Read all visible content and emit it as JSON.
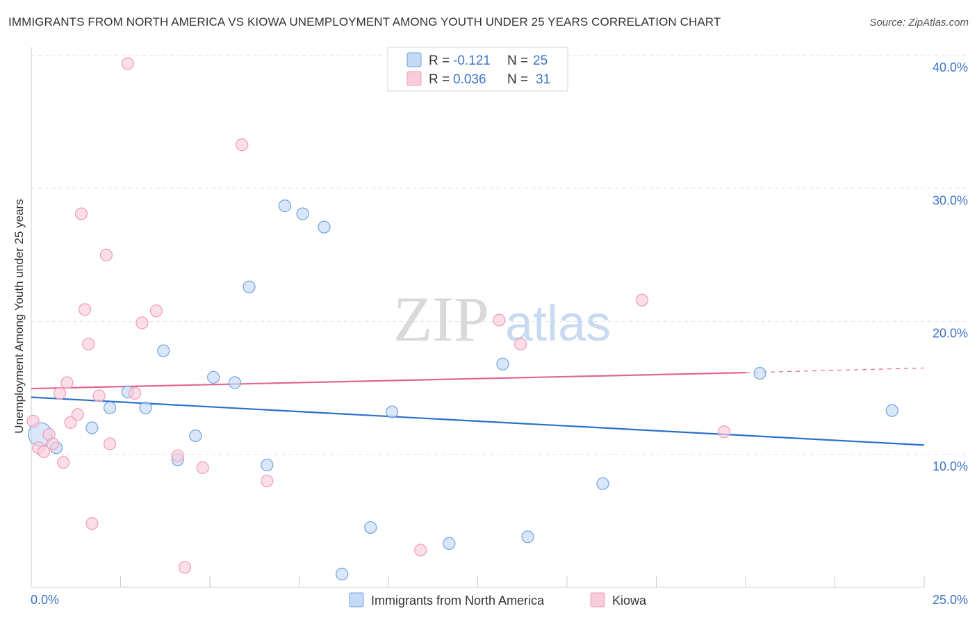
{
  "chart_data": {
    "type": "scatter",
    "title": "IMMIGRANTS FROM NORTH AMERICA VS KIOWA UNEMPLOYMENT AMONG YOUTH UNDER 25 YEARS CORRELATION CHART",
    "source": "Source: ZipAtlas.com",
    "xlabel": "",
    "ylabel": "Unemployment Among Youth under 25 years",
    "xlim": [
      0,
      25
    ],
    "ylim": [
      0,
      40
    ],
    "x_tick_labels": {
      "min": "0.0%",
      "max": "25.0%"
    },
    "y_ticks": [
      {
        "value": 10,
        "label": "10.0%"
      },
      {
        "value": 20,
        "label": "20.0%"
      },
      {
        "value": 30,
        "label": "30.0%"
      },
      {
        "value": 40,
        "label": "40.0%"
      }
    ],
    "grid": true,
    "watermark": "ZIPatlas",
    "legend": {
      "position": "top-center",
      "entries": [
        {
          "r_label": "R =",
          "r_value": "-0.121",
          "n_label": "N =",
          "n_value": "25"
        },
        {
          "r_label": "R =",
          "r_value": "0.036",
          "n_label": "N =",
          "n_value": "31"
        }
      ]
    },
    "series": [
      {
        "name": "Immigrants from North America",
        "color": "#6fa3e0",
        "fill": "#c5daf4",
        "trend_color": "#2a6fcb",
        "trend": {
          "x0": 0,
          "y0": 14.3,
          "x1": 25,
          "y1": 10.7
        },
        "points": [
          [
            0.25,
            11.5
          ],
          [
            0.7,
            10.5
          ],
          [
            1.7,
            12.0
          ],
          [
            2.2,
            13.5
          ],
          [
            2.7,
            14.7
          ],
          [
            3.2,
            13.5
          ],
          [
            3.7,
            17.8
          ],
          [
            4.1,
            9.6
          ],
          [
            4.6,
            11.4
          ],
          [
            5.1,
            15.8
          ],
          [
            5.7,
            15.4
          ],
          [
            6.1,
            22.6
          ],
          [
            6.6,
            9.2
          ],
          [
            7.1,
            28.7
          ],
          [
            7.6,
            28.1
          ],
          [
            8.2,
            27.1
          ],
          [
            8.7,
            1.0
          ],
          [
            9.5,
            4.5
          ],
          [
            10.1,
            13.2
          ],
          [
            11.7,
            3.3
          ],
          [
            13.9,
            3.8
          ],
          [
            13.2,
            16.8
          ],
          [
            16.0,
            7.8
          ],
          [
            20.4,
            16.1
          ],
          [
            24.1,
            13.3
          ]
        ]
      },
      {
        "name": "Kiowa",
        "color": "#f29ab8",
        "fill": "#f8ccdb",
        "trend_color": "#e0668f",
        "trend": {
          "x0": 0,
          "y0": 14.95,
          "x1": 20.0,
          "y1": 16.15
        },
        "trend_dashed": {
          "x0": 20.0,
          "y0": 16.15,
          "x1": 25,
          "y1": 16.5
        },
        "points": [
          [
            0.05,
            12.5
          ],
          [
            0.2,
            10.5
          ],
          [
            0.35,
            10.2
          ],
          [
            0.5,
            11.5
          ],
          [
            0.6,
            10.8
          ],
          [
            0.8,
            14.6
          ],
          [
            0.9,
            9.4
          ],
          [
            1.0,
            15.4
          ],
          [
            1.1,
            12.4
          ],
          [
            1.3,
            13.0
          ],
          [
            1.4,
            28.1
          ],
          [
            1.5,
            20.9
          ],
          [
            1.6,
            18.3
          ],
          [
            1.7,
            4.8
          ],
          [
            1.9,
            14.4
          ],
          [
            2.1,
            25.0
          ],
          [
            2.2,
            10.8
          ],
          [
            2.7,
            39.4
          ],
          [
            2.9,
            14.6
          ],
          [
            3.1,
            19.9
          ],
          [
            3.5,
            20.8
          ],
          [
            4.1,
            9.9
          ],
          [
            4.3,
            1.5
          ],
          [
            4.8,
            9.0
          ],
          [
            5.9,
            33.3
          ],
          [
            6.6,
            8.0
          ],
          [
            10.9,
            2.8
          ],
          [
            13.1,
            20.1
          ],
          [
            13.7,
            18.3
          ],
          [
            17.1,
            21.6
          ],
          [
            19.4,
            11.7
          ]
        ]
      }
    ]
  }
}
